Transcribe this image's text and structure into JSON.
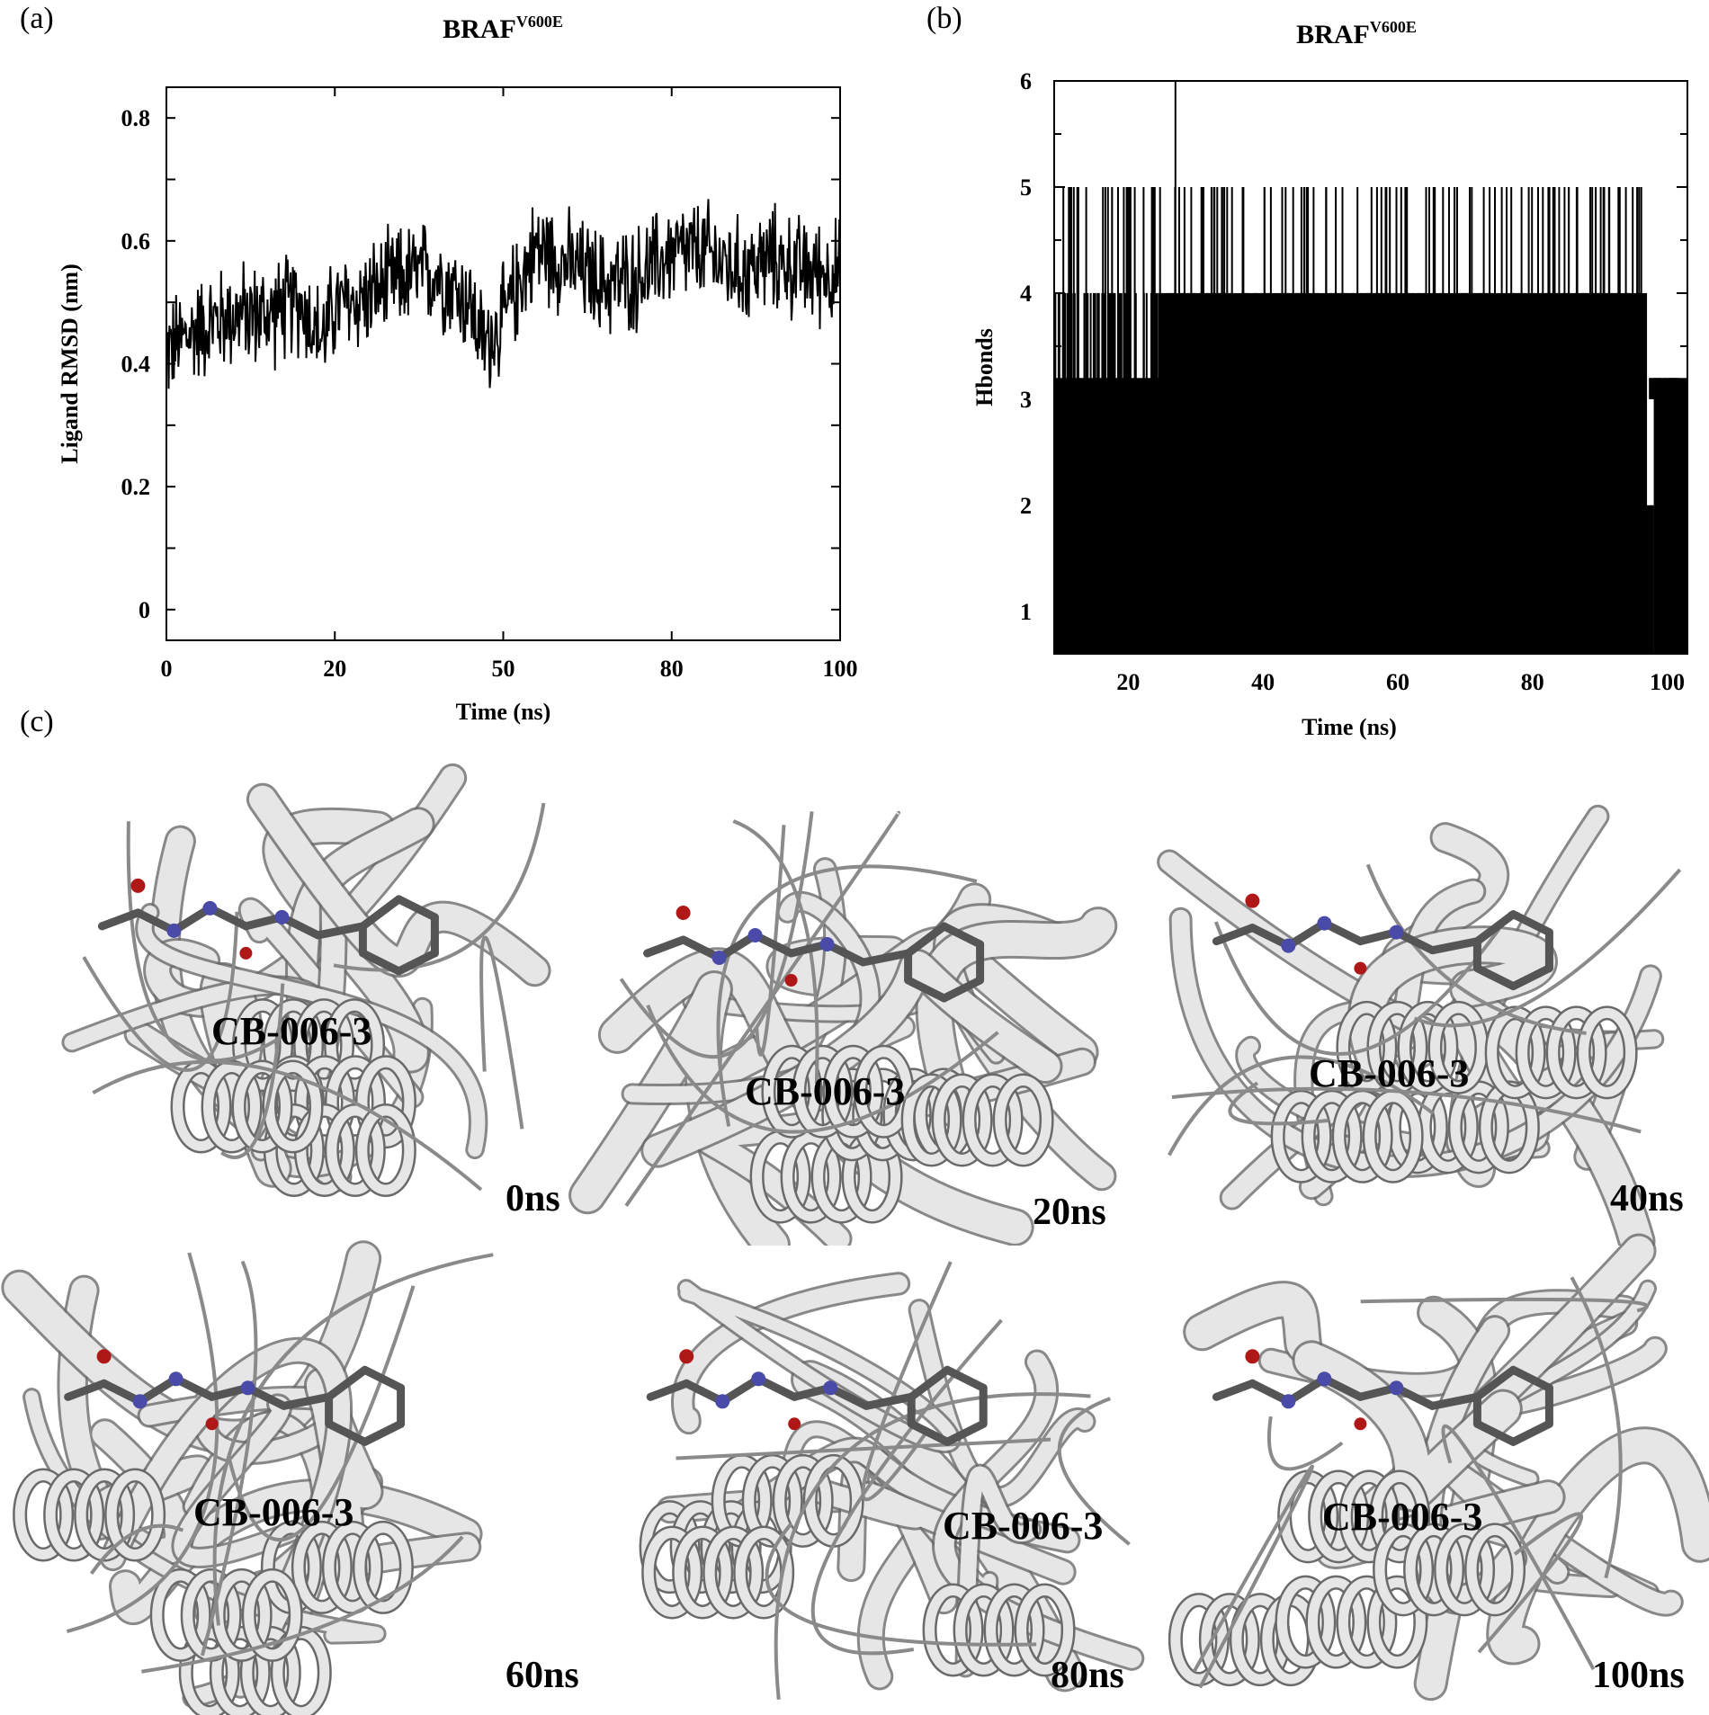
{
  "panels": {
    "a": {
      "letter": "(a)"
    },
    "b": {
      "letter": "(b)"
    },
    "c": {
      "letter": "(c)"
    }
  },
  "chart_data": [
    {
      "type": "line",
      "title": "BRAF",
      "title_superscript": "V600E",
      "xlabel": "Time (ns)",
      "ylabel": "Ligand RMSD (nm)",
      "xticks": [
        "0",
        "20",
        "50",
        "80",
        "100"
      ],
      "yticks": [
        "0",
        "0.2",
        "0.4",
        "0.6",
        "0.8"
      ],
      "xlim": [
        0,
        100
      ],
      "ylim": [
        -0.05,
        0.85
      ],
      "series": [
        {
          "values_xy": [
            [
              0,
              0.42
            ],
            [
              5,
              0.46
            ],
            [
              10,
              0.48
            ],
            [
              15,
              0.48
            ],
            [
              20,
              0.5
            ],
            [
              23,
              0.44
            ],
            [
              25,
              0.49
            ],
            [
              30,
              0.51
            ],
            [
              35,
              0.54
            ],
            [
              40,
              0.55
            ],
            [
              45,
              0.5
            ],
            [
              47,
              0.43
            ],
            [
              50,
              0.47
            ],
            [
              53,
              0.55
            ],
            [
              55,
              0.59
            ],
            [
              60,
              0.56
            ],
            [
              65,
              0.53
            ],
            [
              70,
              0.54
            ],
            [
              75,
              0.58
            ],
            [
              80,
              0.58
            ],
            [
              85,
              0.55
            ],
            [
              90,
              0.57
            ],
            [
              95,
              0.55
            ],
            [
              100,
              0.55
            ]
          ],
          "spread": 0.07
        }
      ],
      "grid": false
    },
    {
      "type": "line",
      "title": "BRAF",
      "title_superscript": "V600E",
      "xlabel": "Time (ns)",
      "ylabel": "Hbonds",
      "xticks": [
        "20",
        "40",
        "60",
        "80",
        "100"
      ],
      "yticks": [
        "1",
        "2",
        "3",
        "4",
        "5",
        "6"
      ],
      "xlim": [
        9,
        103
      ],
      "ylim": [
        0.6,
        6
      ],
      "series": [
        {
          "core_low": 2,
          "core_high": 3,
          "frequent_low": 1,
          "frequent_high": 4,
          "occasional_high": 5,
          "max": 6
        }
      ],
      "grid": false
    }
  ],
  "snapshots": [
    {
      "ligand": "CB-006-3",
      "time": "0ns"
    },
    {
      "ligand": "CB-006-3",
      "time": "20ns"
    },
    {
      "ligand": "CB-006-3",
      "time": "40ns"
    },
    {
      "ligand": "CB-006-3",
      "time": "60ns"
    },
    {
      "ligand": "CB-006-3",
      "time": "80ns"
    },
    {
      "ligand": "CB-006-3",
      "time": "100ns"
    }
  ],
  "colors": {
    "trace": "#000000",
    "ribbon_light": "#e6e6e6",
    "ribbon_dark": "#6a6a6a",
    "ligand_carbon": "#555555",
    "nitrogen": "#4a4aa8",
    "oxygen": "#b01818"
  }
}
